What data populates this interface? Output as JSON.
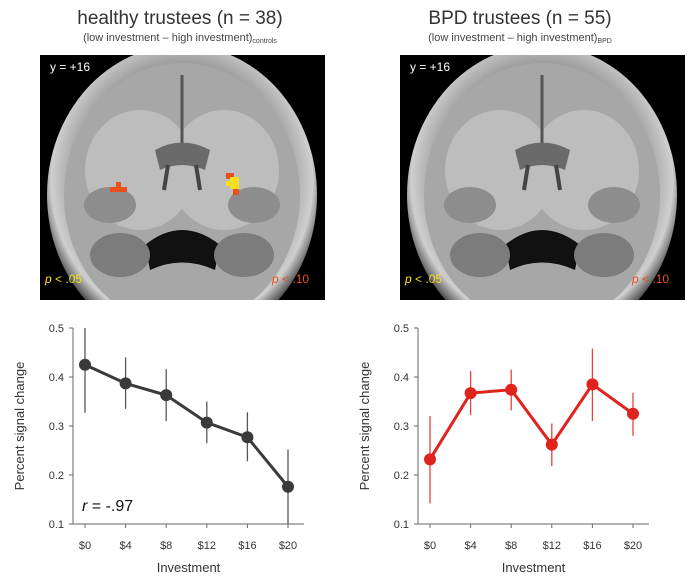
{
  "figure": {
    "left_panel": {
      "title": "healthy trustees (n = 38)",
      "subtitle_main": "(low investment – high investment)",
      "subtitle_sub": "controls",
      "slice_label": "y = +16",
      "p_low": "< .05",
      "p_high": "< .10",
      "p_letter": "p"
    },
    "right_panel": {
      "title": "BPD trustees (n = 55)",
      "subtitle_main": "(low investment – high investment)",
      "subtitle_sub": "BPD",
      "slice_label": "y = +16",
      "p_low": "< .05",
      "p_high": "< .10",
      "p_letter": "p"
    },
    "colors": {
      "p_low": "#f5e020",
      "p_high": "#e8501e",
      "control_line": "#3a3a3a",
      "bpd_line": "#e0231d"
    }
  },
  "chart_data": [
    {
      "type": "line",
      "title": "",
      "xlabel": "Investment",
      "ylabel": "Percent signal change",
      "categories": [
        "$0",
        "$4",
        "$8",
        "$12",
        "$16",
        "$20"
      ],
      "values": [
        0.425,
        0.387,
        0.363,
        0.307,
        0.277,
        0.176
      ],
      "err_low": [
        0.327,
        0.335,
        0.31,
        0.265,
        0.228,
        0.1
      ],
      "err_high": [
        0.5,
        0.44,
        0.416,
        0.35,
        0.328,
        0.252
      ],
      "ylim": [
        0.1,
        0.5
      ],
      "yticks": [
        "0.1",
        "0.2",
        "0.3",
        "0.4",
        "0.5"
      ],
      "annotation_r": "r",
      "annotation_value": " = -.97",
      "color": "#3a3a3a"
    },
    {
      "type": "line",
      "title": "",
      "xlabel": "Investment",
      "ylabel": "Percent signal change",
      "categories": [
        "$0",
        "$4",
        "$8",
        "$12",
        "$16",
        "$20"
      ],
      "values": [
        0.232,
        0.367,
        0.374,
        0.262,
        0.385,
        0.325
      ],
      "err_low": [
        0.142,
        0.322,
        0.332,
        0.218,
        0.31,
        0.28
      ],
      "err_high": [
        0.32,
        0.412,
        0.415,
        0.305,
        0.458,
        0.368
      ],
      "ylim": [
        0.1,
        0.5
      ],
      "yticks": [
        "0.1",
        "0.2",
        "0.3",
        "0.4",
        "0.5"
      ],
      "annotation_r": "",
      "annotation_value": "",
      "color": "#e0231d"
    }
  ]
}
